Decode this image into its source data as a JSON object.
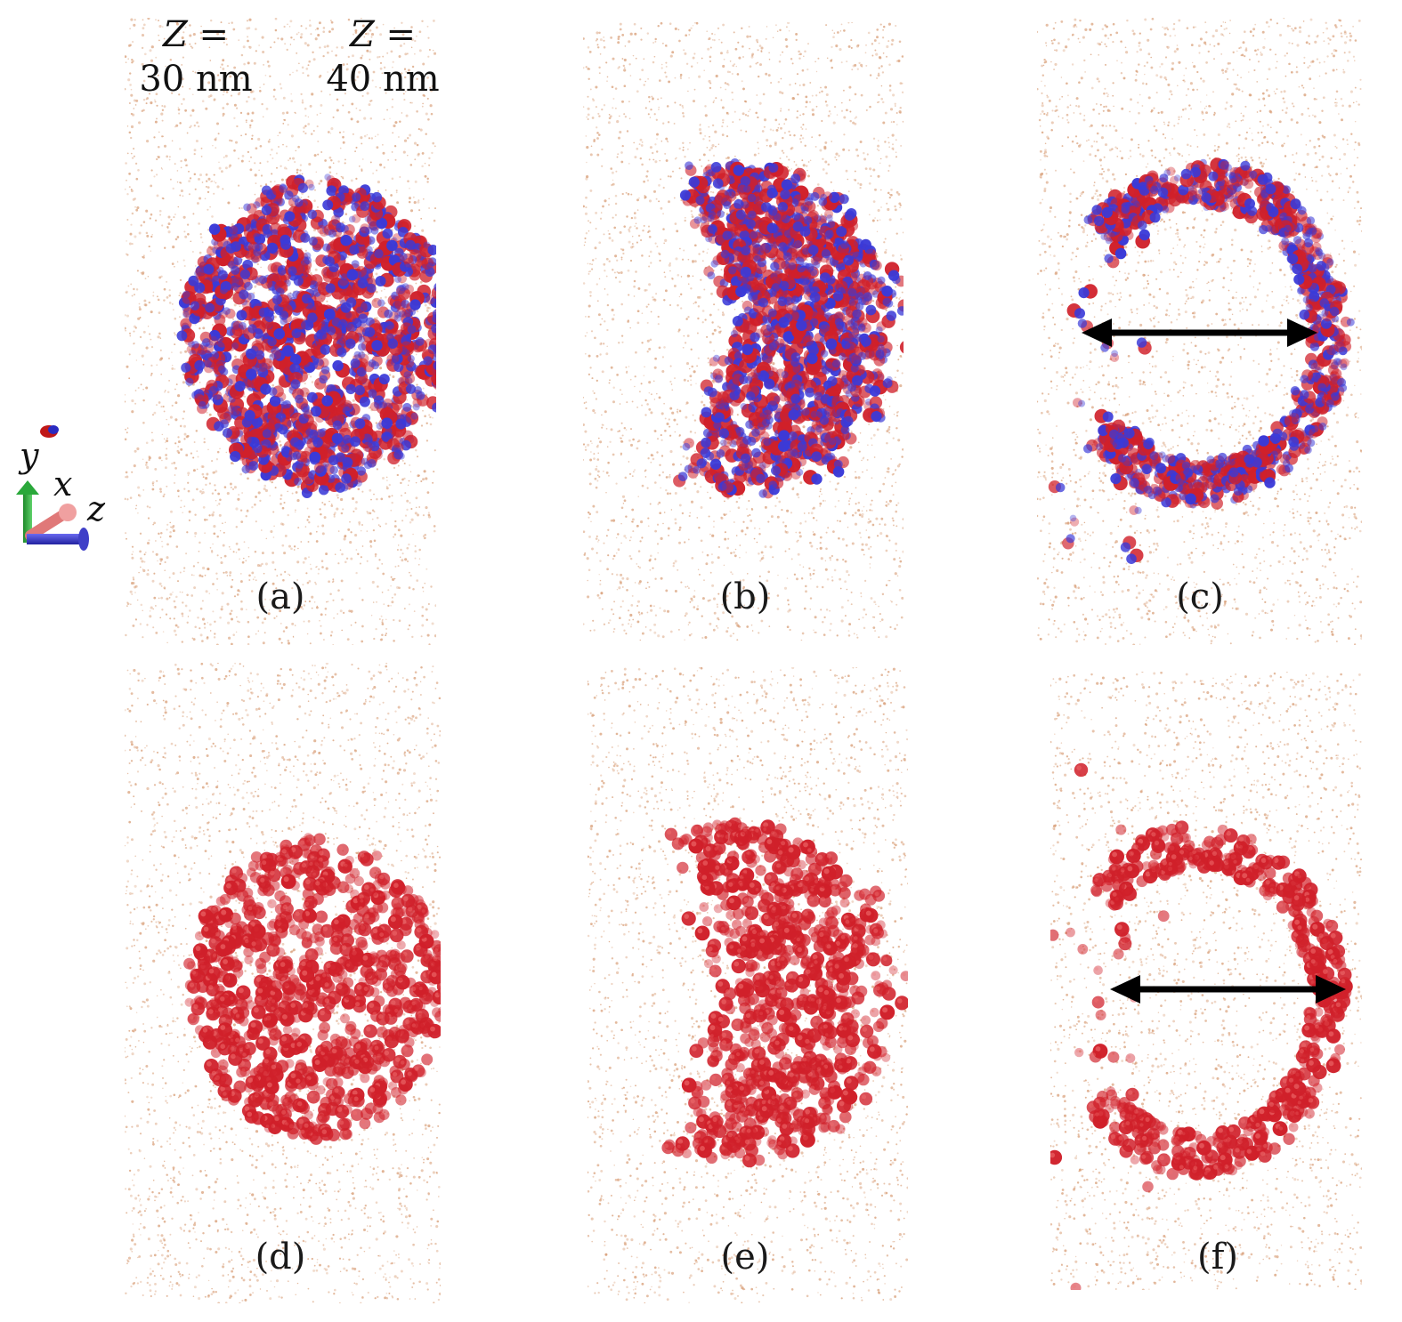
{
  "z_labels": [
    {
      "line1": "Z =",
      "line2": "30  nm"
    },
    {
      "line1": "Z =",
      "line2": "40  nm"
    }
  ],
  "axes": {
    "y": "y",
    "x": "x",
    "z": "z"
  },
  "panels": [
    {
      "label": "(a)",
      "style": "blue-red",
      "shape": "dense"
    },
    {
      "label": "(b)",
      "style": "blue-red",
      "shape": "cap"
    },
    {
      "label": "(c)",
      "style": "blue-red",
      "shape": "ring"
    },
    {
      "label": "(d)",
      "style": "red",
      "shape": "dense"
    },
    {
      "label": "(e)",
      "style": "red",
      "shape": "cap"
    },
    {
      "label": "(f)",
      "style": "red",
      "shape": "ring"
    }
  ],
  "colors": {
    "background_dots": "#d9a07a",
    "particle_red": "#d0202a",
    "particle_blue": "#3a3ad8",
    "arrow": "#000000"
  }
}
